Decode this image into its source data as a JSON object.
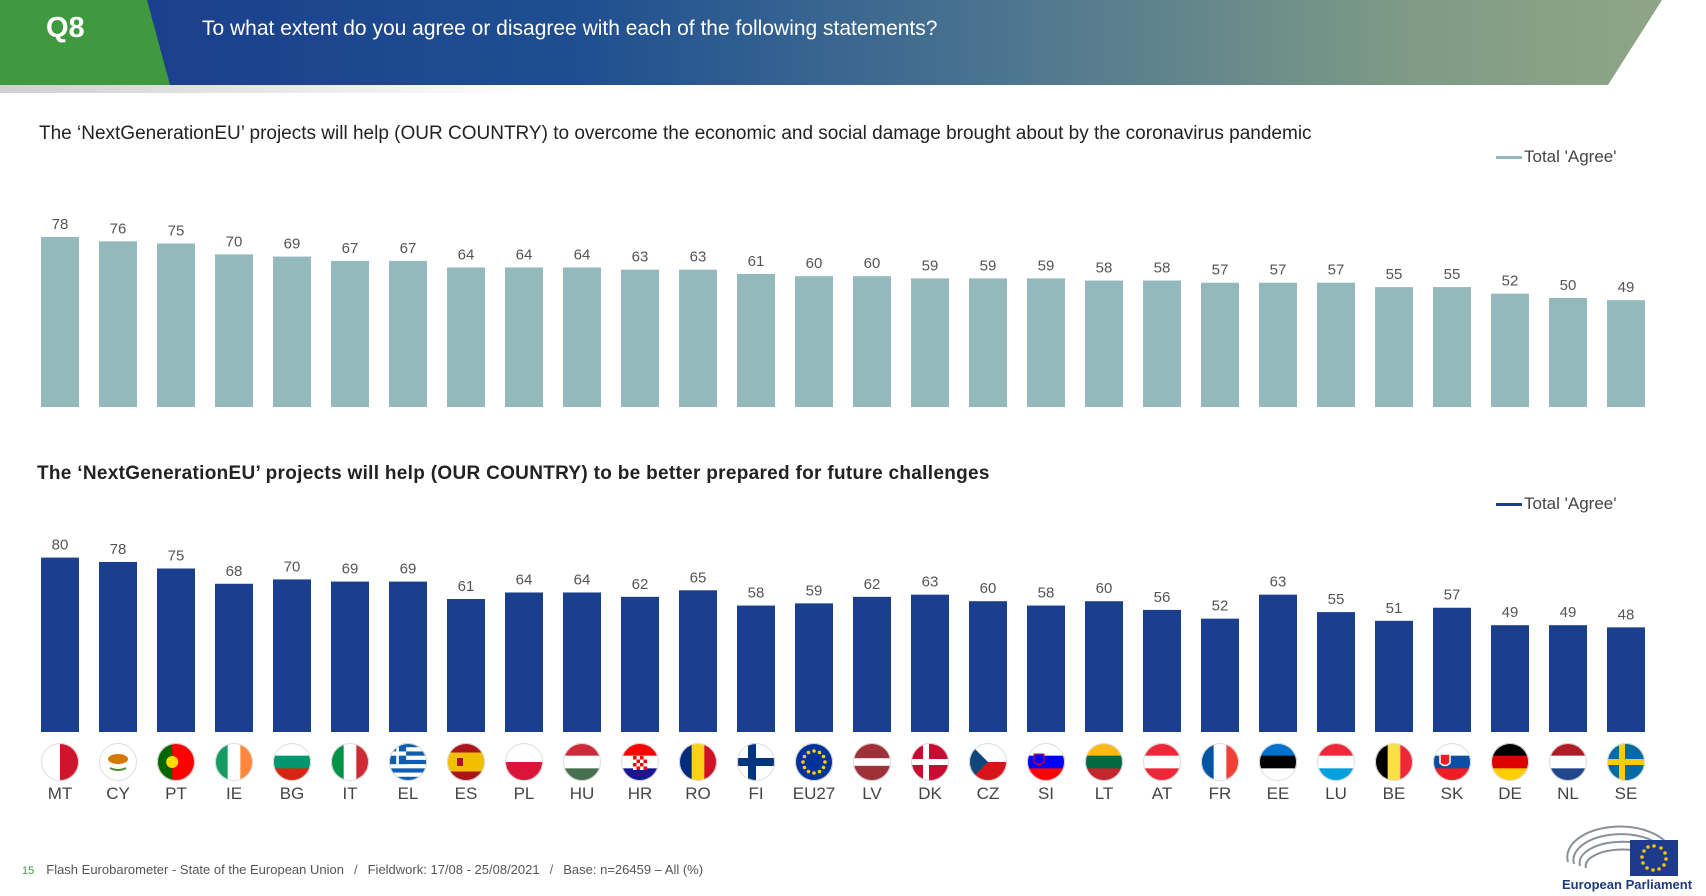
{
  "header": {
    "question_code": "Q8",
    "question_text": "To what extent do you agree or disagree with each of the following statements?"
  },
  "colors": {
    "header_green": "#3f9a3f",
    "header_blue": "#1a3b8c",
    "series1": "#93b9bc",
    "series2": "#1b3f8f"
  },
  "chart_data": [
    {
      "type": "bar",
      "title": "The ‘NextGenerationEU’ projects will help (OUR COUNTRY) to overcome the economic and social damage brought about by the coronavirus pandemic",
      "legend": "Total 'Agree'",
      "categories": [
        "MT",
        "CY",
        "PT",
        "IE",
        "BG",
        "IT",
        "EL",
        "ES",
        "PL",
        "HU",
        "HR",
        "RO",
        "FI",
        "EU27",
        "LV",
        "DK",
        "CZ",
        "SI",
        "LT",
        "AT",
        "FR",
        "EE",
        "LU",
        "BE",
        "SK",
        "DE",
        "NL",
        "SE"
      ],
      "values": [
        78,
        76,
        75,
        70,
        69,
        67,
        67,
        64,
        64,
        64,
        63,
        63,
        61,
        60,
        60,
        59,
        59,
        59,
        58,
        58,
        57,
        57,
        57,
        55,
        55,
        52,
        50,
        49
      ],
      "ylim": [
        0,
        80
      ],
      "grid": false,
      "legend_position": "top-right"
    },
    {
      "type": "bar",
      "title": "The ‘NextGenerationEU’ projects will help (OUR COUNTRY) to be better prepared for future challenges",
      "legend": "Total 'Agree'",
      "categories": [
        "MT",
        "CY",
        "PT",
        "IE",
        "BG",
        "IT",
        "EL",
        "ES",
        "PL",
        "HU",
        "HR",
        "RO",
        "FI",
        "EU27",
        "LV",
        "DK",
        "CZ",
        "SI",
        "LT",
        "AT",
        "FR",
        "EE",
        "LU",
        "BE",
        "SK",
        "DE",
        "NL",
        "SE"
      ],
      "values": [
        80,
        78,
        75,
        68,
        70,
        69,
        69,
        61,
        64,
        64,
        62,
        65,
        58,
        59,
        62,
        63,
        60,
        58,
        60,
        56,
        52,
        63,
        55,
        51,
        57,
        49,
        49,
        48
      ],
      "ylim": [
        0,
        80
      ],
      "grid": false,
      "legend_position": "top-right"
    }
  ],
  "footer": {
    "page_number": "15",
    "source": "Flash Eurobarometer - State of the European Union",
    "fieldwork": "Fieldwork: 17/08 - 25/08/2021",
    "base": "Base: n=26459 – All (%)"
  },
  "logo": {
    "name": "European Parliament"
  }
}
